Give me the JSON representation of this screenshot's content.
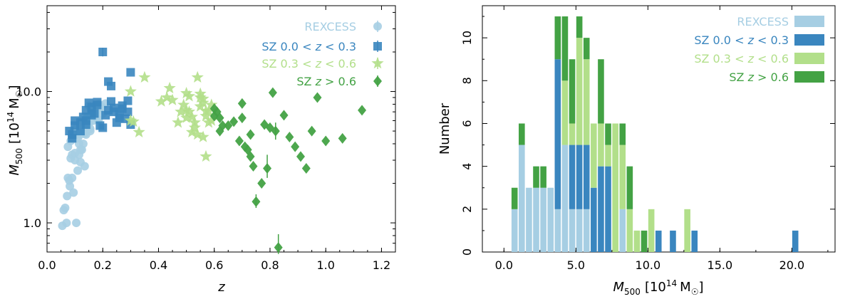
{
  "colors": {
    "rexcess": "#a6cee3",
    "sz_low": "#3a86bf",
    "sz_mid": "#b2df8a",
    "sz_high": "#43a244"
  },
  "chart_data": [
    {
      "type": "scatter",
      "xlabel": "z",
      "ylabel": "M500 [10^14 M☉]",
      "ylabel_main": "M",
      "ylabel_sub": "500",
      "ylabel_unit": "[10",
      "ylabel_exp": "14",
      "ylabel_unit2": "M",
      "ylabel_sun": "☉",
      "ylabel_close": "]",
      "yscale": "log",
      "xlim": [
        0.0,
        1.25
      ],
      "ylim": [
        0.6,
        45
      ],
      "xticks": [
        0.0,
        0.2,
        0.4,
        0.6,
        0.8,
        1.0,
        1.2
      ],
      "xtick_labels": [
        "0.0",
        "0.2",
        "0.4",
        "0.6",
        "0.8",
        "1.0",
        "1.2"
      ],
      "yticks": [
        1.0,
        10.0
      ],
      "ytick_labels": [
        "1.0",
        "10.0"
      ],
      "legend_position": "top-right",
      "series": [
        {
          "name": "REXCESS",
          "label_text": "REXCESS",
          "marker": "circle",
          "color_key": "rexcess",
          "x": [
            0.055,
            0.06,
            0.065,
            0.07,
            0.072,
            0.075,
            0.08,
            0.082,
            0.085,
            0.09,
            0.09,
            0.095,
            0.1,
            0.1,
            0.105,
            0.11,
            0.11,
            0.115,
            0.12,
            0.12,
            0.125,
            0.13,
            0.13,
            0.135,
            0.14,
            0.14,
            0.145,
            0.15,
            0.15,
            0.155,
            0.16,
            0.16,
            0.165,
            0.17,
            0.175,
            0.18,
            0.185,
            0.19,
            0.2,
            0.21,
            0.075,
            0.085,
            0.095,
            0.105,
            0.115,
            0.125,
            0.135,
            0.145,
            0.155,
            0.165,
            0.175,
            0.185,
            0.195,
            0.1,
            0.12,
            0.14
          ],
          "y": [
            0.95,
            1.25,
            1.3,
            1.0,
            1.6,
            2.2,
            2.1,
            1.9,
            3.1,
            3.3,
            2.2,
            1.7,
            4.6,
            3.4,
            1.0,
            4.4,
            2.5,
            3.3,
            2.9,
            4.7,
            3.6,
            5.3,
            4.0,
            2.7,
            6.2,
            4.7,
            5.6,
            5.7,
            7.8,
            5.0,
            7.2,
            6.6,
            6.0,
            7.8,
            7.1,
            6.2,
            8.0,
            7.5,
            6.8,
            8.1,
            3.8,
            4.2,
            5.0,
            5.3,
            4.0,
            6.0,
            4.8,
            6.4,
            5.2,
            7.0,
            6.9,
            6.1,
            7.7,
            3.0,
            3.6,
            5.8
          ]
        },
        {
          "name": "SZ 0.0 < z < 0.3",
          "label_prefix": "SZ 0.0 <",
          "label_var": "z",
          "label_suffix": "< 0.3",
          "marker": "square",
          "color_key": "sz_low",
          "x": [
            0.08,
            0.09,
            0.1,
            0.1,
            0.12,
            0.13,
            0.14,
            0.14,
            0.15,
            0.16,
            0.17,
            0.18,
            0.19,
            0.2,
            0.21,
            0.22,
            0.23,
            0.24,
            0.25,
            0.26,
            0.27,
            0.28,
            0.29,
            0.3,
            0.2,
            0.22,
            0.23,
            0.18,
            0.16,
            0.27,
            0.26,
            0.12,
            0.14,
            0.09,
            0.3,
            0.29,
            0.24
          ],
          "y": [
            5.0,
            4.7,
            5.5,
            6.0,
            5.8,
            6.4,
            7.2,
            6.0,
            8.2,
            7.6,
            6.8,
            7.9,
            5.5,
            5.3,
            6.6,
            7.2,
            8.4,
            7.0,
            5.8,
            6.7,
            7.4,
            6.2,
            7.0,
            5.6,
            20.0,
            11.9,
            11.0,
            8.3,
            6.6,
            7.8,
            6.3,
            5.0,
            5.6,
            4.4,
            14.0,
            8.5,
            7.5
          ]
        },
        {
          "name": "SZ 0.3 < z < 0.6",
          "label_prefix": "SZ 0.3 <",
          "label_var": "z",
          "label_suffix": "< 0.6",
          "marker": "star",
          "color_key": "sz_mid",
          "x": [
            0.3,
            0.31,
            0.33,
            0.35,
            0.41,
            0.43,
            0.44,
            0.45,
            0.47,
            0.48,
            0.49,
            0.5,
            0.5,
            0.51,
            0.52,
            0.52,
            0.53,
            0.54,
            0.55,
            0.55,
            0.56,
            0.56,
            0.57,
            0.57,
            0.58,
            0.58,
            0.59,
            0.59,
            0.51,
            0.53,
            0.55,
            0.57,
            0.5,
            0.54,
            0.56,
            0.3
          ],
          "y": [
            10.0,
            5.9,
            4.9,
            12.8,
            8.4,
            9.0,
            10.6,
            8.6,
            5.8,
            7.0,
            7.9,
            9.7,
            7.2,
            9.2,
            4.9,
            6.4,
            5.8,
            12.8,
            9.0,
            7.7,
            8.8,
            4.5,
            3.2,
            7.1,
            5.8,
            7.1,
            6.0,
            7.9,
            7.0,
            5.3,
            9.6,
            6.5,
            6.3,
            4.7,
            8.2,
            6.0
          ]
        },
        {
          "name": "SZ z > 0.6",
          "label_prefix": "SZ",
          "label_var": "z",
          "label_suffix": "> 0.6",
          "marker": "diamond",
          "color_key": "sz_high",
          "x": [
            0.6,
            0.61,
            0.62,
            0.63,
            0.65,
            0.67,
            0.69,
            0.7,
            0.71,
            0.72,
            0.73,
            0.74,
            0.75,
            0.77,
            0.78,
            0.79,
            0.8,
            0.81,
            0.82,
            0.83,
            0.85,
            0.87,
            0.89,
            0.91,
            0.93,
            0.95,
            0.97,
            1.0,
            1.06,
            1.13,
            0.6,
            0.62,
            0.7,
            0.73
          ],
          "y": [
            6.5,
            7.0,
            6.3,
            5.5,
            5.5,
            5.9,
            4.2,
            8.1,
            3.8,
            3.6,
            3.2,
            2.7,
            1.45,
            2.0,
            5.6,
            2.6,
            5.3,
            9.8,
            5.0,
            0.65,
            6.6,
            4.5,
            3.8,
            3.2,
            2.6,
            5.0,
            9.0,
            4.2,
            4.4,
            7.2,
            7.4,
            5.0,
            6.3,
            4.7
          ]
        }
      ]
    },
    {
      "type": "bar",
      "stacked": true,
      "xlabel": "M500 [10^14 M☉]",
      "xlabel_main": "M",
      "xlabel_sub": "500",
      "xlabel_unit": "[10",
      "xlabel_exp": "14",
      "xlabel_unit2": "M",
      "xlabel_sun": "☉",
      "xlabel_close": "]",
      "ylabel": "Number",
      "xlim": [
        -1.5,
        23
      ],
      "ylim": [
        0,
        11.5
      ],
      "bin_width": 0.5,
      "xticks": [
        0.0,
        5.0,
        10.0,
        15.0,
        20.0
      ],
      "xtick_labels": [
        "0.0",
        "5.0",
        "10.0",
        "15.0",
        "20.0"
      ],
      "yticks": [
        0,
        2,
        4,
        6,
        8,
        10
      ],
      "ytick_labels": [
        "0",
        "2",
        "4",
        "6",
        "8",
        "10"
      ],
      "legend_position": "top-right",
      "bin_starts": [
        0.5,
        1.0,
        1.5,
        2.0,
        2.5,
        3.0,
        3.5,
        4.0,
        4.5,
        5.0,
        5.5,
        6.0,
        6.5,
        7.0,
        7.5,
        8.0,
        8.5,
        9.0,
        9.5,
        10.0,
        10.5,
        11.0,
        11.5,
        12.0,
        12.5,
        13.0,
        13.5,
        20.0
      ],
      "series": [
        {
          "name": "REXCESS",
          "label_text": "REXCESS",
          "color_key": "rexcess",
          "values": [
            2,
            5,
            3,
            3,
            3,
            3,
            2,
            5,
            2,
            2,
            2,
            0,
            0,
            0,
            0,
            2,
            0,
            0,
            0,
            0,
            0,
            0,
            0,
            0,
            0,
            0,
            0,
            0
          ]
        },
        {
          "name": "SZ 0.0 < z < 0.3",
          "label_prefix": "SZ 0.0 <",
          "label_var": "z",
          "label_suffix": "< 0.3",
          "color_key": "sz_low",
          "values": [
            0,
            0,
            0,
            0,
            0,
            0,
            7,
            0,
            3,
            3,
            3,
            3,
            4,
            4,
            0,
            0,
            0,
            0,
            0,
            0,
            1,
            0,
            1,
            0,
            0,
            1,
            0,
            1
          ]
        },
        {
          "name": "SZ 0.3 < z < 0.6",
          "label_prefix": "SZ 0.3 <",
          "label_var": "z",
          "label_suffix": "< 0.6",
          "color_key": "sz_mid",
          "values": [
            0,
            0,
            0,
            0,
            0,
            0,
            0,
            3,
            1,
            5,
            4,
            3,
            2,
            1,
            6,
            3,
            2,
            1,
            0,
            2,
            0,
            0,
            0,
            0,
            2,
            0,
            0,
            0
          ]
        },
        {
          "name": "SZ z > 0.6",
          "label_prefix": "SZ",
          "label_var": "z",
          "label_suffix": "> 0.6",
          "color_key": "sz_high",
          "values": [
            1,
            1,
            0,
            1,
            1,
            0,
            2,
            3,
            3,
            1,
            1,
            0,
            3,
            1,
            0,
            1,
            2,
            0,
            1,
            0,
            0,
            0,
            0,
            0,
            0,
            0,
            0,
            0
          ]
        }
      ]
    }
  ]
}
